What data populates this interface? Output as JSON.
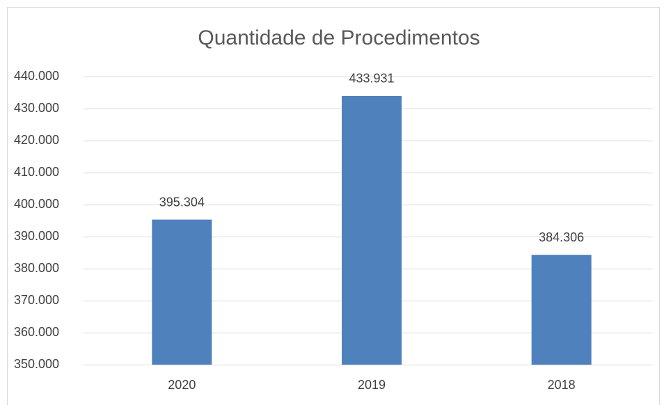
{
  "chart_data": {
    "type": "bar",
    "title": "Quantidade de Procedimentos",
    "categories": [
      "2020",
      "2019",
      "2018"
    ],
    "values": [
      395304,
      433931,
      384306
    ],
    "value_labels": [
      "395.304",
      "433.931",
      "384.306"
    ],
    "color": "#4f81bd",
    "ylim": [
      350000,
      440000
    ],
    "yticks": [
      {
        "value": 350000,
        "label": "350.000"
      },
      {
        "value": 360000,
        "label": "360.000"
      },
      {
        "value": 370000,
        "label": "370.000"
      },
      {
        "value": 380000,
        "label": "380.000"
      },
      {
        "value": 390000,
        "label": "390.000"
      },
      {
        "value": 400000,
        "label": "400.000"
      },
      {
        "value": 410000,
        "label": "410.000"
      },
      {
        "value": 420000,
        "label": "420.000"
      },
      {
        "value": 430000,
        "label": "430.000"
      },
      {
        "value": 440000,
        "label": "440.000"
      }
    ],
    "grid": true
  }
}
